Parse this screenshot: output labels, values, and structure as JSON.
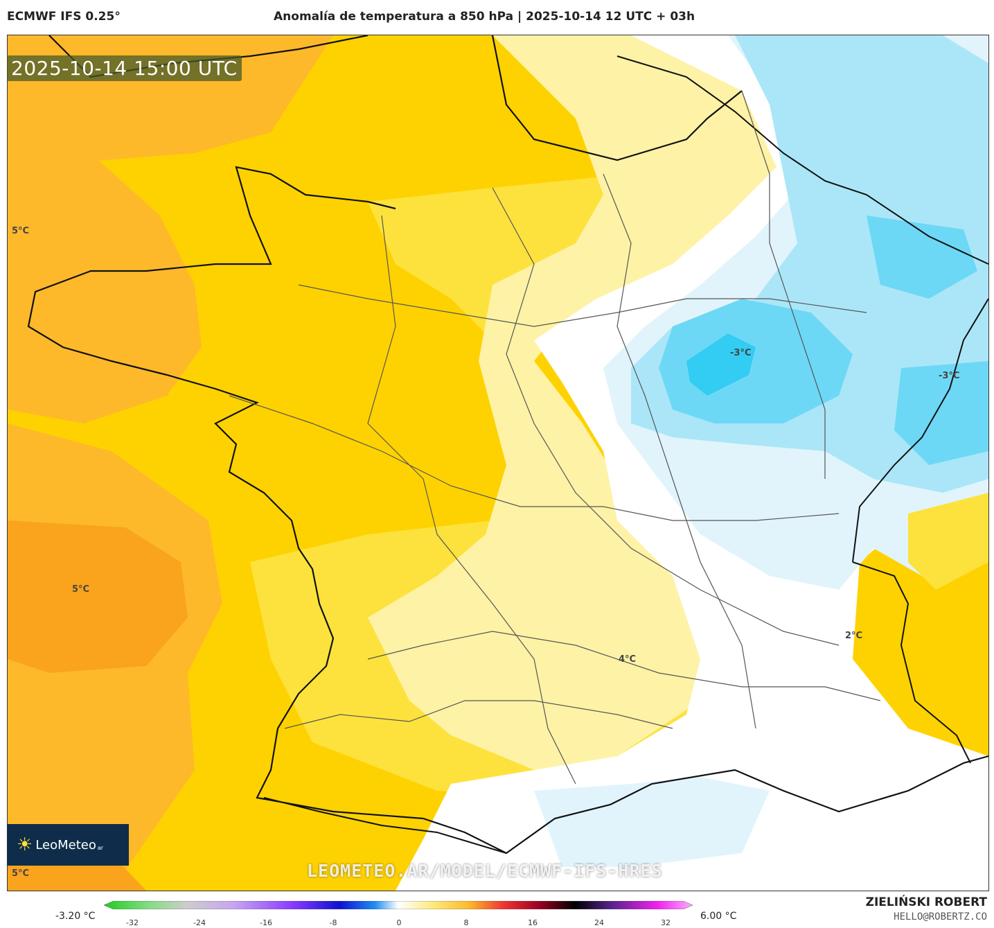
{
  "header": {
    "model": "ECMWF IFS 0.25°",
    "title": "Anomalía de temperatura a 850 hPa | 2025-10-14 12 UTC + 03h"
  },
  "map": {
    "valid_time": "2025-10-14 15:00 UTC",
    "contour_labels": [
      "5°C",
      "5°C",
      "4°C",
      "2°C",
      "-3°C",
      "-3°C",
      "5°C"
    ],
    "watermark": "LEOMETEO.AR/MODEL/ECMWF-IFS-HRES",
    "logo_text": "LeoMeteo",
    "logo_suffix": "ar",
    "colors": {
      "orange": "#f9a41c",
      "light_orange": "#fdb92a",
      "gold": "#fed201",
      "yellow": "#fde23d",
      "pale_yellow": "#fef2a6",
      "white": "#ffffff",
      "pale_blue": "#e1f4fc",
      "light_blue": "#abe6f8",
      "blue": "#6dd8f5",
      "cyan": "#33ccf2"
    }
  },
  "colorbar": {
    "min_label": "-3.20 °C",
    "max_label": "6.00 °C",
    "ticks": [
      "-32",
      "-24",
      "-16",
      "-8",
      "0",
      "8",
      "16",
      "24",
      "32"
    ]
  },
  "footer": {
    "author": "ZIELIŃSKI ROBERT",
    "email": "HELLO@ROBERTZ.CO"
  }
}
